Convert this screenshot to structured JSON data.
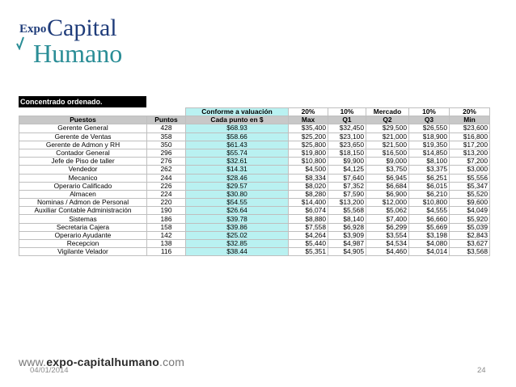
{
  "logo": {
    "expo": "Expo",
    "capital": "Capital",
    "humano": "Humano"
  },
  "section_title": "Concentrado ordenado.",
  "header_top": {
    "conforme": "Conforme a valuación",
    "p20a": "20%",
    "p10a": "10%",
    "mercado": "Mercado",
    "p10b": "10%",
    "p20b": "20%"
  },
  "columns": [
    "Puestos",
    "Puntos",
    "Cada punto en $",
    "Max",
    "Q1",
    "Q2",
    "Q3",
    "Min"
  ],
  "rows": [
    [
      "Gerente General",
      "428",
      "$68.93",
      "$35,400",
      "$32,450",
      "$29,500",
      "$26,550",
      "$23,600"
    ],
    [
      "Gerente de Ventas",
      "358",
      "$58.66",
      "$25,200",
      "$23,100",
      "$21,000",
      "$18,900",
      "$16,800"
    ],
    [
      "Gerente de Admon y RH",
      "350",
      "$61.43",
      "$25,800",
      "$23,650",
      "$21,500",
      "$19,350",
      "$17,200"
    ],
    [
      "Contador General",
      "296",
      "$55.74",
      "$19,800",
      "$18,150",
      "$16,500",
      "$14,850",
      "$13,200"
    ],
    [
      "Jefe de Piso de taller",
      "276",
      "$32.61",
      "$10,800",
      "$9,900",
      "$9,000",
      "$8,100",
      "$7,200"
    ],
    [
      "Vendedor",
      "262",
      "$14.31",
      "$4,500",
      "$4,125",
      "$3,750",
      "$3,375",
      "$3,000"
    ],
    [
      "Mecanico",
      "244",
      "$28.46",
      "$8,334",
      "$7,640",
      "$6,945",
      "$6,251",
      "$5,556"
    ],
    [
      "Operario Calificado",
      "226",
      "$29.57",
      "$8,020",
      "$7,352",
      "$6,684",
      "$6,015",
      "$5,347"
    ],
    [
      "Almacen",
      "224",
      "$30.80",
      "$8,280",
      "$7,590",
      "$6,900",
      "$6,210",
      "$5,520"
    ],
    [
      "Nominas / Admon de Personal",
      "220",
      "$54.55",
      "$14,400",
      "$13,200",
      "$12,000",
      "$10,800",
      "$9,600"
    ],
    [
      "Auxiliar Contable Administración",
      "190",
      "$26.64",
      "$6,074",
      "$5,568",
      "$5,062",
      "$4,555",
      "$4,049"
    ],
    [
      "Sistemas",
      "186",
      "$39.78",
      "$8,880",
      "$8,140",
      "$7,400",
      "$6,660",
      "$5,920"
    ],
    [
      "Secretaria Cajera",
      "158",
      "$39.86",
      "$7,558",
      "$6,928",
      "$6,299",
      "$5,669",
      "$5,039"
    ],
    [
      "Operario Ayudante",
      "142",
      "$25.02",
      "$4,264",
      "$3,909",
      "$3,554",
      "$3,198",
      "$2,843"
    ],
    [
      "Recepcion",
      "138",
      "$32.85",
      "$5,440",
      "$4,987",
      "$4,534",
      "$4,080",
      "$3,627"
    ],
    [
      "Vigilante Velador",
      "116",
      "$38.44",
      "$5,351",
      "$4,905",
      "$4,460",
      "$4,014",
      "$3,568"
    ]
  ],
  "footer": {
    "url_prefix": "www.",
    "url_main": "expo-capitalhumano",
    "url_suffix": ".com",
    "date": "04/01/2014",
    "page": "24"
  },
  "colors": {
    "highlight": "#b9f1f1",
    "header_gray": "#c8c8c8",
    "logo_blue": "#1f3c7a",
    "logo_teal": "#2a8d96"
  }
}
